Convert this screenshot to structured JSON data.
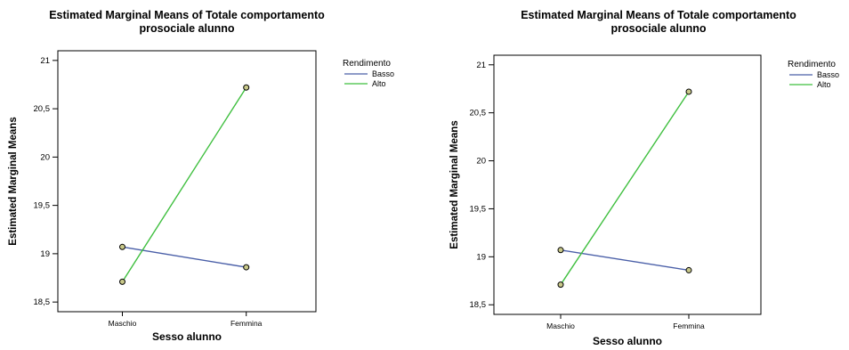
{
  "chart_data": [
    {
      "type": "line",
      "title": "Estimated Marginal Means of Totale comportamento",
      "subtitle": "prosociale alunno",
      "xlabel": "Sesso alunno",
      "ylabel": "Estimated Marginal Means",
      "categories": [
        "Maschio",
        "Femmina"
      ],
      "ylim": [
        18.4,
        21.1
      ],
      "yticks": [
        18.5,
        19,
        19.5,
        20,
        20.5,
        21
      ],
      "ytick_labels": [
        "18,5",
        "19",
        "19,5",
        "20",
        "20,5",
        "21"
      ],
      "legend_title": "Rendimento",
      "legend_position": "right",
      "series": [
        {
          "name": "Basso",
          "color": "#4a5fa8",
          "values": [
            19.07,
            18.86
          ]
        },
        {
          "name": "Alto",
          "color": "#3fbf3f",
          "values": [
            18.71,
            20.72
          ]
        }
      ]
    },
    {
      "type": "line",
      "title": "Estimated Marginal Means of Totale comportamento",
      "subtitle": "prosociale alunno",
      "xlabel": "Sesso alunno",
      "ylabel": "Estimated Marginal Means",
      "categories": [
        "Maschio",
        "Femmina"
      ],
      "ylim": [
        18.4,
        21.1
      ],
      "yticks": [
        18.5,
        19,
        19.5,
        20,
        20.5,
        21
      ],
      "ytick_labels": [
        "18,5",
        "19",
        "19,5",
        "20",
        "20,5",
        "21"
      ],
      "legend_title": "Rendimento",
      "legend_position": "right",
      "series": [
        {
          "name": "Basso",
          "color": "#4a5fa8",
          "values": [
            19.07,
            18.86
          ]
        },
        {
          "name": "Alto",
          "color": "#3fbf3f",
          "values": [
            18.71,
            20.72
          ]
        }
      ]
    }
  ]
}
